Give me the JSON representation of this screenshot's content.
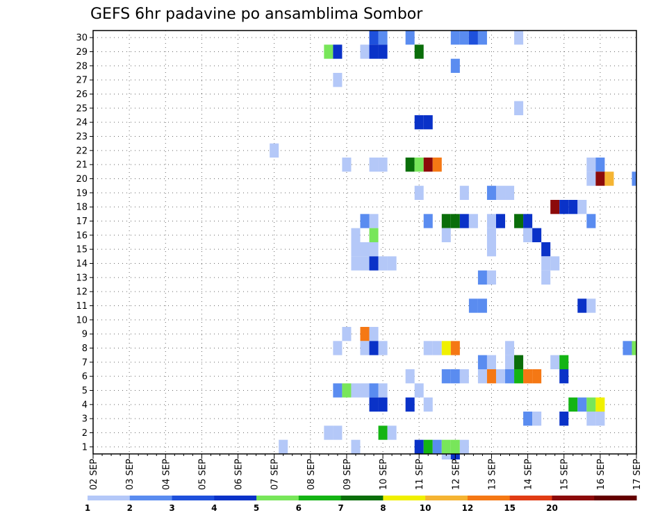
{
  "chart_data": {
    "type": "heatmap",
    "title": "GEFS 6hr padavine po ansamblima Sombor",
    "xlabel": "",
    "ylabel": "",
    "x_ticks": [
      "02 SEP",
      "03 SEP",
      "04 SEP",
      "05 SEP",
      "06 SEP",
      "07 SEP",
      "08 SEP",
      "09 SEP",
      "10 SEP",
      "11 SEP",
      "12 SEP",
      "13 SEP",
      "14 SEP",
      "15 SEP",
      "16 SEP",
      "17 SEP"
    ],
    "x_steps_per_day": 4,
    "xlim": [
      0,
      60
    ],
    "y_ticks": [
      1,
      2,
      3,
      4,
      5,
      6,
      7,
      8,
      9,
      10,
      11,
      12,
      13,
      14,
      15,
      16,
      17,
      18,
      19,
      20,
      21,
      22,
      23,
      24,
      25,
      26,
      27,
      28,
      29,
      30
    ],
    "ylim": [
      0.5,
      30.5
    ],
    "grid": true,
    "legend_position": "bottom",
    "legend": {
      "labels": [
        "1",
        "2",
        "3",
        "4",
        "5",
        "6",
        "7",
        "8",
        "10",
        "12",
        "15",
        "20"
      ],
      "colors": [
        "#b4c8f8",
        "#5a8cf0",
        "#1e50dc",
        "#0a32c8",
        "#78e65a",
        "#14b414",
        "#0a6e0a",
        "#f0f000",
        "#f5b432",
        "#f57814",
        "#e13c14",
        "#8c0a0a",
        "#640000"
      ]
    },
    "cells": [
      [
        31,
        30,
        2
      ],
      [
        32,
        30,
        1
      ],
      [
        35,
        30,
        1
      ],
      [
        40,
        30,
        1
      ],
      [
        41,
        30,
        1
      ],
      [
        42,
        30,
        2
      ],
      [
        43,
        30,
        1
      ],
      [
        47,
        30,
        0
      ],
      [
        26,
        29,
        4
      ],
      [
        27,
        29,
        3
      ],
      [
        30,
        29,
        0
      ],
      [
        31,
        29,
        3
      ],
      [
        32,
        29,
        3
      ],
      [
        36,
        29,
        6
      ],
      [
        40,
        28,
        1
      ],
      [
        27,
        27,
        0
      ],
      [
        47,
        25,
        0
      ],
      [
        36,
        24,
        3
      ],
      [
        37,
        24,
        3
      ],
      [
        20,
        22,
        0
      ],
      [
        28,
        21,
        0
      ],
      [
        31,
        21,
        0
      ],
      [
        32,
        21,
        0
      ],
      [
        35,
        21,
        6
      ],
      [
        36,
        21,
        4
      ],
      [
        37,
        21,
        11
      ],
      [
        38,
        21,
        9
      ],
      [
        55,
        21,
        0
      ],
      [
        56,
        21,
        1
      ],
      [
        55,
        20,
        0
      ],
      [
        56,
        20,
        11
      ],
      [
        57,
        20,
        8
      ],
      [
        60,
        20,
        1
      ],
      [
        36,
        19,
        0
      ],
      [
        41,
        19,
        0
      ],
      [
        44,
        19,
        1
      ],
      [
        45,
        19,
        0
      ],
      [
        46,
        19,
        0
      ],
      [
        51,
        18,
        11
      ],
      [
        52,
        18,
        3
      ],
      [
        53,
        18,
        3
      ],
      [
        54,
        18,
        0
      ],
      [
        30,
        17,
        1
      ],
      [
        31,
        17,
        0
      ],
      [
        37,
        17,
        1
      ],
      [
        39,
        17,
        6
      ],
      [
        40,
        17,
        6
      ],
      [
        41,
        17,
        3
      ],
      [
        42,
        17,
        0
      ],
      [
        44,
        17,
        0
      ],
      [
        45,
        17,
        3
      ],
      [
        47,
        17,
        6
      ],
      [
        48,
        17,
        3
      ],
      [
        55,
        17,
        1
      ],
      [
        29,
        16,
        0
      ],
      [
        31,
        16,
        4
      ],
      [
        39,
        16,
        0
      ],
      [
        44,
        16,
        0
      ],
      [
        48,
        16,
        0
      ],
      [
        49,
        16,
        3
      ],
      [
        29,
        15,
        0
      ],
      [
        30,
        15,
        0
      ],
      [
        31,
        15,
        0
      ],
      [
        44,
        15,
        0
      ],
      [
        50,
        15,
        3
      ],
      [
        29,
        14,
        0
      ],
      [
        30,
        14,
        0
      ],
      [
        31,
        14,
        3
      ],
      [
        32,
        14,
        0
      ],
      [
        33,
        14,
        0
      ],
      [
        50,
        14,
        0
      ],
      [
        51,
        14,
        0
      ],
      [
        43,
        13,
        1
      ],
      [
        44,
        13,
        0
      ],
      [
        50,
        13,
        0
      ],
      [
        42,
        11,
        1
      ],
      [
        43,
        11,
        1
      ],
      [
        54,
        11,
        3
      ],
      [
        55,
        11,
        0
      ],
      [
        28,
        9,
        0
      ],
      [
        30,
        9,
        9
      ],
      [
        31,
        9,
        0
      ],
      [
        27,
        8,
        0
      ],
      [
        30,
        8,
        0
      ],
      [
        31,
        8,
        3
      ],
      [
        32,
        8,
        0
      ],
      [
        37,
        8,
        0
      ],
      [
        38,
        8,
        0
      ],
      [
        39,
        8,
        7
      ],
      [
        40,
        8,
        9
      ],
      [
        46,
        8,
        0
      ],
      [
        59,
        8,
        1
      ],
      [
        60,
        8,
        4
      ],
      [
        43,
        7,
        1
      ],
      [
        44,
        7,
        0
      ],
      [
        46,
        7,
        0
      ],
      [
        47,
        7,
        6
      ],
      [
        51,
        7,
        0
      ],
      [
        52,
        7,
        5
      ],
      [
        35,
        6,
        0
      ],
      [
        39,
        6,
        1
      ],
      [
        40,
        6,
        1
      ],
      [
        41,
        6,
        0
      ],
      [
        43,
        6,
        0
      ],
      [
        44,
        6,
        9
      ],
      [
        45,
        6,
        0
      ],
      [
        46,
        6,
        1
      ],
      [
        47,
        6,
        5
      ],
      [
        48,
        6,
        9
      ],
      [
        49,
        6,
        9
      ],
      [
        52,
        6,
        3
      ],
      [
        27,
        5,
        1
      ],
      [
        28,
        5,
        4
      ],
      [
        29,
        5,
        0
      ],
      [
        30,
        5,
        0
      ],
      [
        31,
        5,
        1
      ],
      [
        32,
        5,
        0
      ],
      [
        36,
        5,
        0
      ],
      [
        31,
        4,
        3
      ],
      [
        32,
        4,
        3
      ],
      [
        35,
        4,
        3
      ],
      [
        37,
        4,
        0
      ],
      [
        53,
        4,
        5
      ],
      [
        54,
        4,
        1
      ],
      [
        55,
        4,
        4
      ],
      [
        56,
        4,
        7
      ],
      [
        48,
        3,
        1
      ],
      [
        49,
        3,
        0
      ],
      [
        52,
        3,
        3
      ],
      [
        55,
        3,
        0
      ],
      [
        56,
        3,
        0
      ],
      [
        26,
        2,
        0
      ],
      [
        27,
        2,
        0
      ],
      [
        32,
        2,
        5
      ],
      [
        33,
        2,
        0
      ],
      [
        21,
        1,
        0
      ],
      [
        29,
        1,
        0
      ],
      [
        36,
        1,
        3
      ],
      [
        37,
        1,
        5
      ],
      [
        38,
        1,
        1
      ],
      [
        39,
        1,
        4
      ],
      [
        40,
        1,
        4
      ],
      [
        41,
        1,
        0
      ],
      [
        39,
        0,
        0
      ],
      [
        40,
        0,
        3
      ]
    ]
  }
}
